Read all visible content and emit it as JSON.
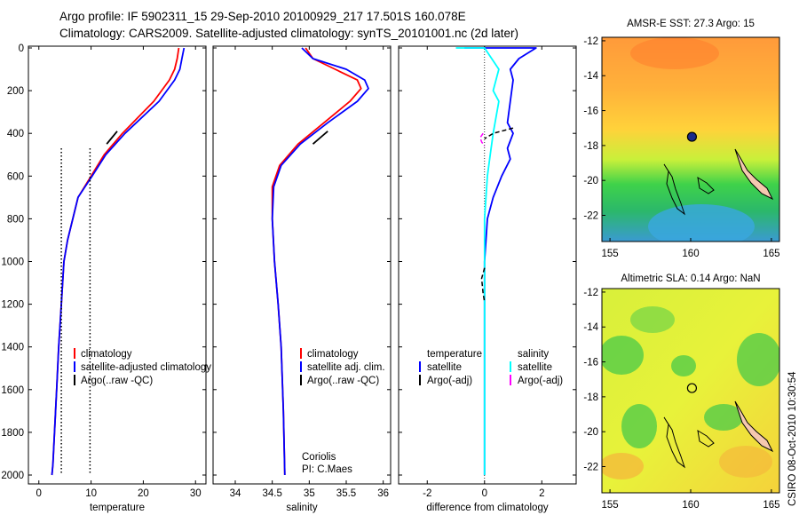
{
  "title": {
    "line1": "Argo profile: IF 5902311_15 29-Sep-2010 20100929_217 17.501S 160.078E",
    "line2": "Climatology: CARS2009. Satellite-adjusted climatology: synTS_20101001.nc (2d later)"
  },
  "footer": "CSIRO 08-Oct-2010 10:30:54",
  "colors": {
    "red": "#ff0000",
    "blue": "#0000ff",
    "cyan": "#00ffff",
    "magenta": "#ff00ff",
    "black": "#000000"
  },
  "depth_axis": {
    "ylim": [
      0,
      2050
    ],
    "ticks": [
      0,
      200,
      400,
      600,
      800,
      1000,
      1200,
      1400,
      1600,
      1800,
      2000
    ]
  },
  "chart_data": [
    {
      "id": "temperature",
      "type": "line",
      "xlabel": "temperature",
      "xlim": [
        -2,
        32
      ],
      "xticks": [
        0,
        10,
        20,
        30
      ],
      "legend": [
        "climatology",
        "satellite-adjusted climatology",
        "Argo(..raw -QC)"
      ],
      "series": [
        {
          "name": "climatology",
          "color": "#ff0000",
          "style": "solid",
          "x": [
            26.8,
            26.5,
            26.0,
            25.0,
            22.0,
            16.0,
            12.5,
            10.0,
            7.5,
            5.5,
            4.8,
            4.3,
            3.8,
            3.4,
            3.0,
            2.7,
            2.5
          ],
          "y": [
            0,
            50,
            100,
            150,
            250,
            400,
            500,
            600,
            700,
            900,
            1000,
            1200,
            1400,
            1600,
            1800,
            1950,
            2000
          ]
        },
        {
          "name": "satellite-adjusted climatology",
          "color": "#0000ff",
          "style": "solid",
          "x": [
            27.8,
            27.4,
            27.0,
            26.0,
            23.0,
            16.5,
            12.8,
            10.2,
            7.5,
            5.5,
            4.8,
            4.3,
            3.8,
            3.4,
            3.0,
            2.7,
            2.5
          ],
          "y": [
            0,
            50,
            100,
            150,
            250,
            400,
            500,
            600,
            700,
            900,
            1000,
            1200,
            1400,
            1600,
            1800,
            1950,
            2000
          ]
        },
        {
          "name": "Argo(..raw -QC)",
          "color": "#000000",
          "style": "solid",
          "x": [
            15.0,
            14.0,
            13.0
          ],
          "y": [
            390,
            420,
            450
          ]
        },
        {
          "name": "vertical-dotted-left",
          "color": "#000000",
          "style": "dotted",
          "x": [
            4.3,
            4.3
          ],
          "y": [
            470,
            2000
          ]
        },
        {
          "name": "vertical-dotted-right",
          "color": "#000000",
          "style": "dotted",
          "x": [
            9.8,
            9.8
          ],
          "y": [
            470,
            2000
          ]
        }
      ]
    },
    {
      "id": "salinity",
      "type": "line",
      "xlabel": "salinity",
      "xlim": [
        33.7,
        36.1
      ],
      "xticks": [
        34,
        34.5,
        35,
        35.5,
        36
      ],
      "legend": [
        "climatology",
        "satellite adj. clim.",
        "Argo(..raw -QC)"
      ],
      "annotation": [
        "Coriolis",
        "PI: C.Maes"
      ],
      "series": [
        {
          "name": "climatology",
          "color": "#ff0000",
          "style": "solid",
          "x": [
            34.95,
            35.05,
            35.35,
            35.65,
            35.7,
            35.55,
            35.2,
            34.85,
            34.6,
            34.5,
            34.5,
            34.53,
            34.58,
            34.62,
            34.65,
            34.67
          ],
          "y": [
            0,
            50,
            100,
            150,
            190,
            250,
            350,
            450,
            550,
            650,
            800,
            1000,
            1200,
            1400,
            1700,
            2000
          ]
        },
        {
          "name": "satellite adj. clim.",
          "color": "#0000ff",
          "style": "solid",
          "x": [
            34.9,
            35.05,
            35.5,
            35.75,
            35.8,
            35.65,
            35.25,
            34.88,
            34.62,
            34.52,
            34.5,
            34.53,
            34.58,
            34.62,
            34.65,
            34.67
          ],
          "y": [
            0,
            50,
            100,
            150,
            190,
            250,
            350,
            450,
            550,
            650,
            800,
            1000,
            1200,
            1400,
            1700,
            2000
          ]
        },
        {
          "name": "Argo(..raw -QC)",
          "color": "#000000",
          "style": "solid",
          "x": [
            35.25,
            35.15,
            35.05
          ],
          "y": [
            390,
            420,
            450
          ]
        }
      ]
    },
    {
      "id": "difference",
      "type": "line",
      "xlabel": "difference from climatology",
      "xlim": [
        -3,
        3.2
      ],
      "xticks": [
        -2,
        0,
        2
      ],
      "legend_headers": [
        "temperature",
        "salinity"
      ],
      "legend": [
        "satellite",
        "Argo(-adj)",
        "satellite",
        "Argo(-adj)"
      ],
      "series": [
        {
          "name": "temperature satellite",
          "color": "#0000ff",
          "style": "solid",
          "x": [
            -0.7,
            0.2,
            1.8,
            1.2,
            0.9,
            1.0,
            0.9,
            0.8,
            1.0,
            0.8,
            0.9,
            0.6,
            0.3,
            0.1,
            0.0,
            0.0
          ],
          "y": [
            0,
            0,
            0,
            50,
            100,
            150,
            250,
            350,
            400,
            470,
            520,
            600,
            700,
            800,
            1000,
            2000
          ]
        },
        {
          "name": "salinity satellite",
          "color": "#00ffff",
          "style": "solid",
          "x": [
            -1.0,
            0.0,
            0.5,
            0.3,
            0.5,
            0.3,
            0.2,
            0.1,
            0.0,
            0.0
          ],
          "y": [
            0,
            0,
            100,
            200,
            250,
            400,
            500,
            600,
            800,
            2000
          ]
        },
        {
          "name": "temperature Argo(-adj)",
          "color": "#000000",
          "style": "dashed",
          "x": [
            1.0,
            0.3,
            0.0
          ],
          "y": [
            375,
            400,
            425
          ]
        },
        {
          "name": "temperature Argo(-adj) deep",
          "color": "#000000",
          "style": "dashed",
          "x": [
            0.0,
            -0.1,
            -0.05,
            0.0
          ],
          "y": [
            1030,
            1080,
            1150,
            1190
          ]
        },
        {
          "name": "salinity Argo(-adj)",
          "color": "#ff00ff",
          "style": "dashed",
          "x": [
            -0.05,
            -0.15,
            -0.1,
            0.0
          ],
          "y": [
            400,
            420,
            440,
            460
          ]
        }
      ]
    },
    {
      "id": "sst-map",
      "type": "heatmap",
      "title": "AMSR-E SST: 27.3 Argo: 15",
      "xlim": [
        154.5,
        165.5
      ],
      "ylim": [
        -23.5,
        -11.8
      ],
      "xticks": [
        155,
        160,
        165
      ],
      "yticks": [
        -12,
        -14,
        -16,
        -18,
        -20,
        -22
      ],
      "marker": {
        "lon": 160.078,
        "lat": -17.501,
        "filled": true
      }
    },
    {
      "id": "sla-map",
      "type": "heatmap",
      "title": "Altimetric SLA: 0.14 Argo: NaN",
      "xlim": [
        154.5,
        165.5
      ],
      "ylim": [
        -23.5,
        -11.8
      ],
      "xticks": [
        155,
        160,
        165
      ],
      "yticks": [
        -12,
        -14,
        -16,
        -18,
        -20,
        -22
      ],
      "marker": {
        "lon": 160.078,
        "lat": -17.501,
        "filled": false
      }
    }
  ]
}
